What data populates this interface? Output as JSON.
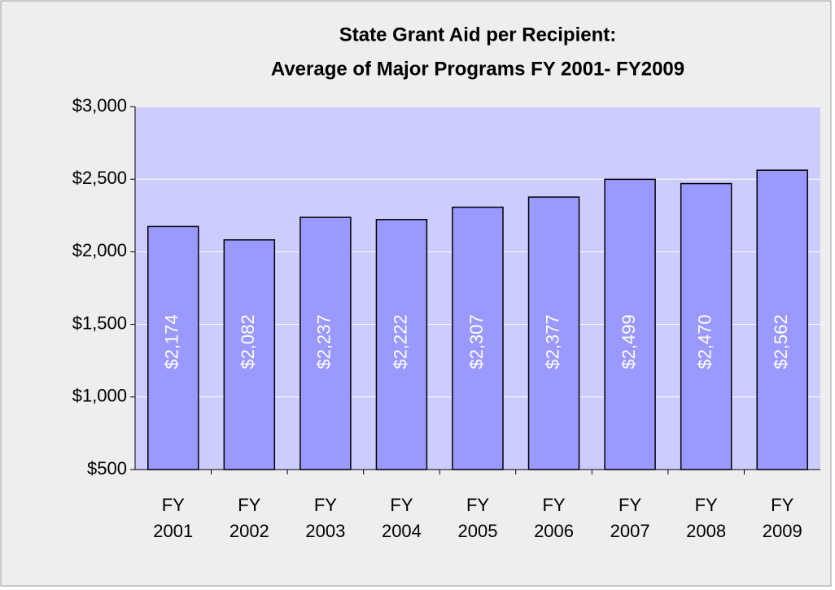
{
  "chart_data": {
    "type": "bar",
    "title": [
      "State Grant Aid per Recipient:",
      "Average of Major Programs FY 2001- FY2009"
    ],
    "categories": [
      "FY 2001",
      "FY 2002",
      "FY 2003",
      "FY 2004",
      "FY 2005",
      "FY 2006",
      "FY 2007",
      "FY 2008",
      "FY 2009"
    ],
    "values": [
      2174,
      2082,
      2237,
      2222,
      2307,
      2377,
      2499,
      2470,
      2562
    ],
    "value_labels": [
      "$2,174",
      "$2,082",
      "$2,237",
      "$2,222",
      "$2,307",
      "$2,377",
      "$2,499",
      "$2,470",
      "$2,562"
    ],
    "color": "#9999ff",
    "ylim": [
      500,
      3000
    ],
    "yticks": [
      {
        "value": 500,
        "label": "$500"
      },
      {
        "value": 1000,
        "label": "$1,000"
      },
      {
        "value": 1500,
        "label": "$1,500"
      },
      {
        "value": 2000,
        "label": "$2,000"
      },
      {
        "value": 2500,
        "label": "$2,500"
      },
      {
        "value": 3000,
        "label": "$3,000"
      }
    ],
    "grid": true
  }
}
